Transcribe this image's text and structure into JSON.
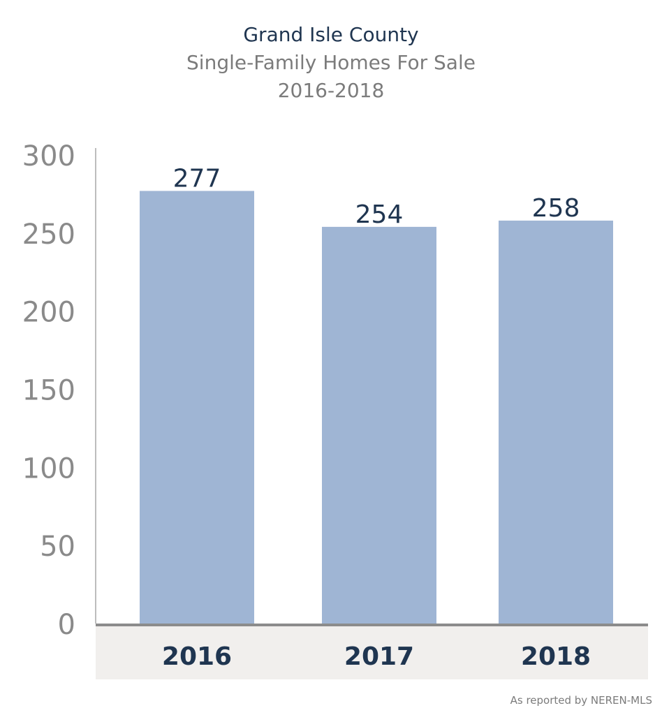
{
  "title": "Grand Isle County",
  "subtitle": "Single-Family Homes For Sale",
  "period": "2016-2018",
  "source": "As reported by NEREN-MLS",
  "colors": {
    "bar": "#9fb5d4",
    "title": "#1f3550",
    "subtitle": "#7b7b7b",
    "axis_text": "#8a8a8a",
    "label": "#1f3550",
    "baseline": "#8c8c8c",
    "category_band": "#f1efed"
  },
  "chart_data": {
    "type": "bar",
    "title": "Grand Isle County",
    "subtitle": "Single-Family Homes For Sale",
    "categories": [
      "2016",
      "2017",
      "2018"
    ],
    "values": [
      277,
      254,
      258
    ],
    "data_labels": [
      "277",
      "254",
      "258"
    ],
    "ylim": [
      0,
      300
    ],
    "yticks": [
      0,
      50,
      100,
      150,
      200,
      250,
      300
    ],
    "xlabel": "",
    "ylabel": "",
    "grid": false,
    "legend": "none"
  }
}
